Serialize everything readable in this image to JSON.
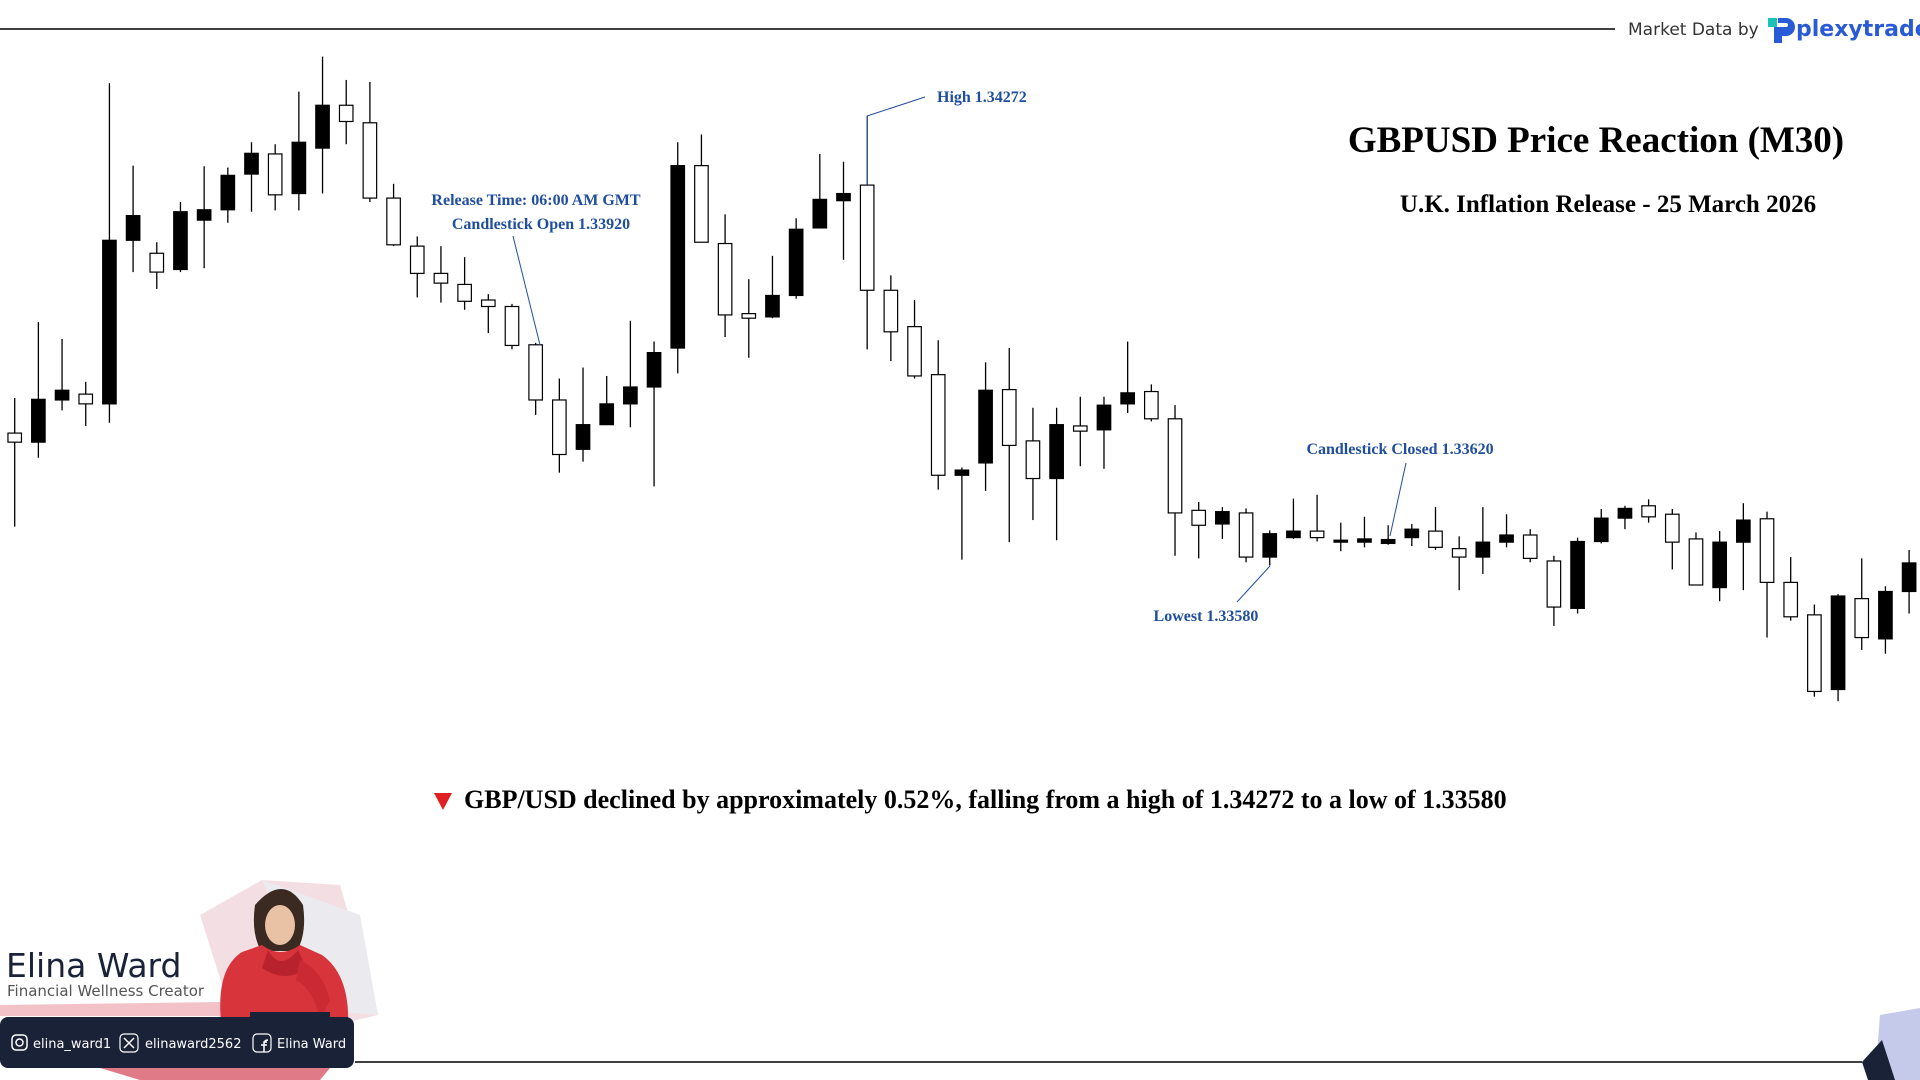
{
  "header": {
    "market_data": "Market Data by",
    "brand": "plexytrade"
  },
  "chart_data": {
    "type": "candlestick",
    "title": "GBPUSD Price Reaction (M30)",
    "subtitle": "U.K. Inflation Release - 25 March 2026",
    "annotations": [
      "Release Time: 06:00 AM GMT",
      "Candlestick Open 1.33920",
      "High 1.34272",
      "Candlestick Closed 1.33620",
      "Lowest 1.33580"
    ],
    "ylim": [
      1.3332,
      1.344
    ],
    "colors": {
      "up": "#000000",
      "down": "#ffffff"
    },
    "open": [
      1.33784,
      1.3377,
      1.33835,
      1.33844,
      1.33829,
      1.34081,
      1.34061,
      1.34036,
      1.34112,
      1.34128,
      1.34183,
      1.34214,
      1.34153,
      1.34223,
      1.34289,
      1.34262,
      1.34146,
      1.34072,
      1.3403,
      1.34013,
      1.33989,
      1.33979,
      1.3392,
      1.33835,
      1.33759,
      1.33797,
      1.33829,
      1.33855,
      1.33915,
      1.34196,
      1.34076,
      1.33968,
      1.33963,
      1.33996,
      1.341,
      1.34142,
      1.34166,
      1.34004,
      1.33948,
      1.33874,
      1.33719,
      1.33738,
      1.33851,
      1.33772,
      1.33714,
      1.33795,
      1.33789,
      1.33829,
      1.33848,
      1.33806,
      1.33665,
      1.33644,
      1.33661,
      1.33593,
      1.33623,
      1.33633,
      1.33616,
      1.33616,
      1.33614,
      1.33623,
      1.33633,
      1.33606,
      1.33593,
      1.33616,
      1.33627,
      1.33587,
      1.33514,
      1.33617,
      1.33653,
      1.33672,
      1.33659,
      1.33621,
      1.33546,
      1.33616,
      1.33652,
      1.33554,
      1.33504,
      1.33389,
      1.33529,
      1.33467,
      1.3354
    ],
    "high": [
      1.33838,
      1.33955,
      1.33929,
      1.33863,
      1.34323,
      1.34196,
      1.34078,
      1.3414,
      1.34195,
      1.34193,
      1.34232,
      1.34229,
      1.3431,
      1.34364,
      1.34328,
      1.34325,
      1.34168,
      1.34087,
      1.34072,
      1.34055,
      1.33998,
      1.33983,
      1.33923,
      1.33868,
      1.33885,
      1.33872,
      1.33957,
      1.33925,
      1.34232,
      1.34244,
      1.34121,
      1.34021,
      1.34057,
      1.34115,
      1.34214,
      1.34202,
      1.34272,
      1.34027,
      1.33989,
      1.33927,
      1.33731,
      1.33893,
      1.33915,
      1.33823,
      1.33823,
      1.3384,
      1.3384,
      1.33925,
      1.33859,
      1.33827,
      1.33678,
      1.3367,
      1.33668,
      1.33634,
      1.33683,
      1.33689,
      1.33646,
      1.33655,
      1.33642,
      1.33644,
      1.3367,
      1.33625,
      1.3367,
      1.33659,
      1.33636,
      1.33595,
      1.33623,
      1.33667,
      1.33672,
      1.33682,
      1.33667,
      1.33631,
      1.33633,
      1.33676,
      1.33663,
      1.33593,
      1.3352,
      1.33536,
      1.33591,
      1.33548,
      1.33604
    ],
    "low": [
      1.3364,
      1.33746,
      1.33819,
      1.33795,
      1.338,
      1.34032,
      1.34006,
      1.34032,
      1.34038,
      1.34108,
      1.34125,
      1.34127,
      1.34127,
      1.34153,
      1.34229,
      1.3414,
      1.34072,
      1.33993,
      1.33985,
      1.33974,
      1.33938,
      1.33913,
      1.33812,
      1.33723,
      1.3374,
      1.33797,
      1.33793,
      1.33702,
      1.33876,
      1.34078,
      1.33932,
      1.339,
      1.33961,
      1.33991,
      1.341,
      1.34051,
      1.33913,
      1.33895,
      1.33868,
      1.33697,
      1.33589,
      1.33695,
      1.33616,
      1.3365,
      1.33619,
      1.33733,
      1.33729,
      1.33815,
      1.33802,
      1.33595,
      1.33591,
      1.33621,
      1.33585,
      1.3358,
      1.33621,
      1.33617,
      1.33602,
      1.33608,
      1.33612,
      1.3361,
      1.33604,
      1.33542,
      1.33567,
      1.33608,
      1.33585,
      1.33487,
      1.33506,
      1.33614,
      1.33636,
      1.33646,
      1.33574,
      1.3355,
      1.33525,
      1.33542,
      1.33469,
      1.33495,
      1.33378,
      1.33371,
      1.3345,
      1.33444,
      1.33506
    ],
    "close": [
      1.3377,
      1.33836,
      1.3385,
      1.33829,
      1.34081,
      1.34119,
      1.34032,
      1.34125,
      1.34128,
      1.34181,
      1.34215,
      1.34151,
      1.34232,
      1.34289,
      1.34264,
      1.34146,
      1.34074,
      1.3403,
      1.34015,
      1.33987,
      1.33979,
      1.33919,
      1.33835,
      1.33751,
      1.33797,
      1.33829,
      1.33855,
      1.33908,
      1.34196,
      1.34078,
      1.33966,
      1.33961,
      1.33996,
      1.34098,
      1.34144,
      1.34153,
      1.34004,
      1.3394,
      1.33872,
      1.33719,
      1.33727,
      1.3385,
      1.33765,
      1.33714,
      1.33797,
      1.33787,
      1.33827,
      1.33846,
      1.33806,
      1.33661,
      1.33642,
      1.33663,
      1.33593,
      1.33629,
      1.33633,
      1.33623,
      1.33619,
      1.33621,
      1.3362,
      1.33636,
      1.33608,
      1.33593,
      1.33616,
      1.33627,
      1.33591,
      1.33516,
      1.33617,
      1.33653,
      1.33668,
      1.33655,
      1.33616,
      1.3355,
      1.33616,
      1.3365,
      1.33554,
      1.33501,
      1.33386,
      1.33533,
      1.33469,
      1.3354,
      1.33584
    ]
  },
  "summary": "GBP/USD declined by approximately 0.52%, falling from a high of 1.34272 to a low of 1.33580",
  "branding": {
    "name": "Elina Ward",
    "role": "Financial Wellness Creator",
    "socials": [
      "elina_ward1",
      "elinaward2562",
      "Elina Ward"
    ]
  }
}
